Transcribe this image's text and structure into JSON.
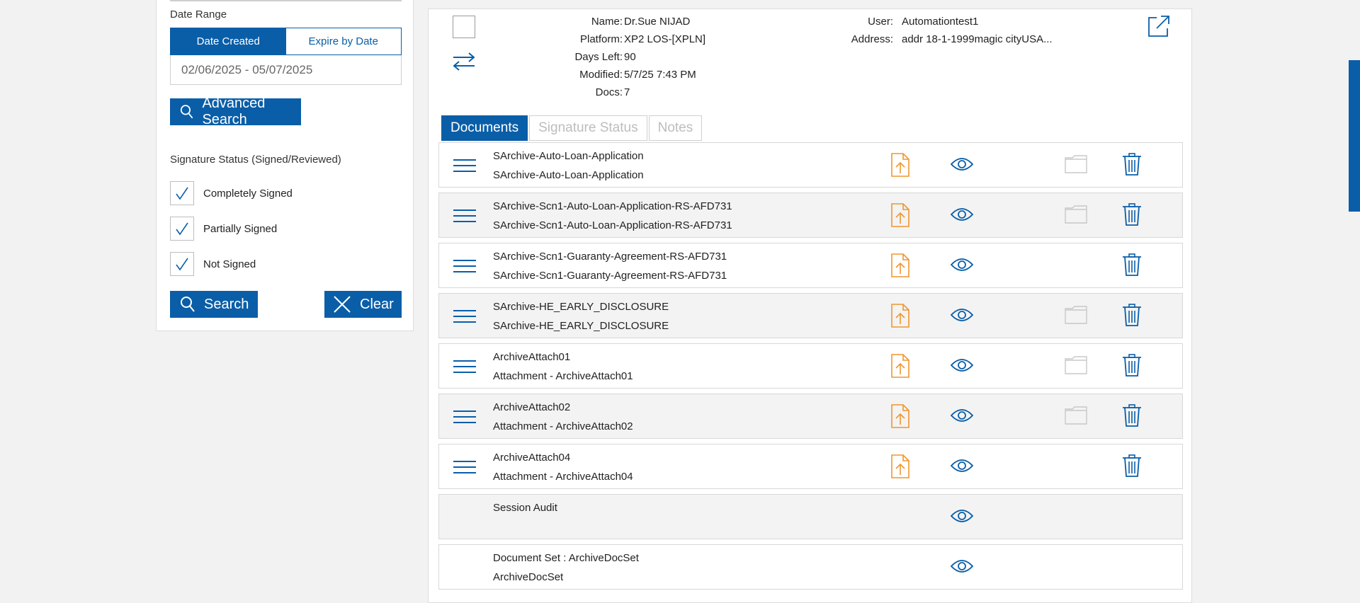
{
  "filters": {
    "date_range_label": "Date Range",
    "toggle": {
      "date_created": "Date Created",
      "expire_by_date": "Expire by Date",
      "selected": "date_created"
    },
    "date_value": "02/06/2025 - 05/07/2025",
    "advanced_search_label": "Advanced Search",
    "signature_status_title": "Signature Status (Signed/Reviewed)",
    "checkboxes": [
      {
        "label": "Completely Signed",
        "checked": true
      },
      {
        "label": "Partially Signed",
        "checked": true
      },
      {
        "label": "Not Signed",
        "checked": true
      }
    ],
    "search_label": "Search",
    "clear_label": "Clear"
  },
  "package": {
    "name_label": "Name:",
    "name": "Dr.Sue NIJAD",
    "platform_label": "Platform:",
    "platform": "XP2 LOS-[XPLN]",
    "days_left_label": "Days Left:",
    "days_left": "90",
    "modified_label": "Modified:",
    "modified": "5/7/25 7:43 PM",
    "docs_label": "Docs:",
    "docs": "7",
    "user_label": "User:",
    "user": "Automationtest1",
    "address_label": "Address:",
    "address": "addr 18-1-1999magic cityUSA..."
  },
  "tabs": [
    "Documents",
    "Signature Status",
    "Notes"
  ],
  "documents": [
    {
      "title": "SArchive-Auto-Loan-Application",
      "subtitle": "SArchive-Auto-Loan-Application",
      "menu": true,
      "upload": true,
      "view": true,
      "folder": true,
      "delete": true
    },
    {
      "title": "SArchive-Scn1-Auto-Loan-Application-RS-AFD731",
      "subtitle": "SArchive-Scn1-Auto-Loan-Application-RS-AFD731",
      "menu": true,
      "upload": true,
      "view": true,
      "folder": true,
      "delete": true
    },
    {
      "title": "SArchive-Scn1-Guaranty-Agreement-RS-AFD731",
      "subtitle": "SArchive-Scn1-Guaranty-Agreement-RS-AFD731",
      "menu": true,
      "upload": true,
      "view": true,
      "folder": false,
      "delete": true
    },
    {
      "title": "SArchive-HE_EARLY_DISCLOSURE",
      "subtitle": "SArchive-HE_EARLY_DISCLOSURE",
      "menu": true,
      "upload": true,
      "view": true,
      "folder": true,
      "delete": true
    },
    {
      "title": "ArchiveAttach01",
      "subtitle": "Attachment - ArchiveAttach01",
      "menu": true,
      "upload": true,
      "view": true,
      "folder": true,
      "delete": true
    },
    {
      "title": "ArchiveAttach02",
      "subtitle": "Attachment - ArchiveAttach02",
      "menu": true,
      "upload": true,
      "view": true,
      "folder": true,
      "delete": true
    },
    {
      "title": "ArchiveAttach04",
      "subtitle": "Attachment - ArchiveAttach04",
      "menu": true,
      "upload": true,
      "view": true,
      "folder": false,
      "delete": true
    },
    {
      "title": "Session Audit",
      "subtitle": "",
      "menu": false,
      "upload": false,
      "view": true,
      "folder": false,
      "delete": false
    },
    {
      "title": "Document Set : ArchiveDocSet",
      "subtitle": "ArchiveDocSet",
      "menu": false,
      "upload": false,
      "view": true,
      "folder": false,
      "delete": false
    }
  ],
  "colors": {
    "accent": "#0a5ea8",
    "upload": "#f0962e",
    "folder": "#c8c8c8"
  },
  "icons": [
    "search-icon",
    "close-icon",
    "check-icon",
    "swap-arrows-icon",
    "popout-icon",
    "hamburger-menu-icon",
    "file-upload-icon",
    "eye-icon",
    "folder-icon",
    "trash-icon"
  ]
}
